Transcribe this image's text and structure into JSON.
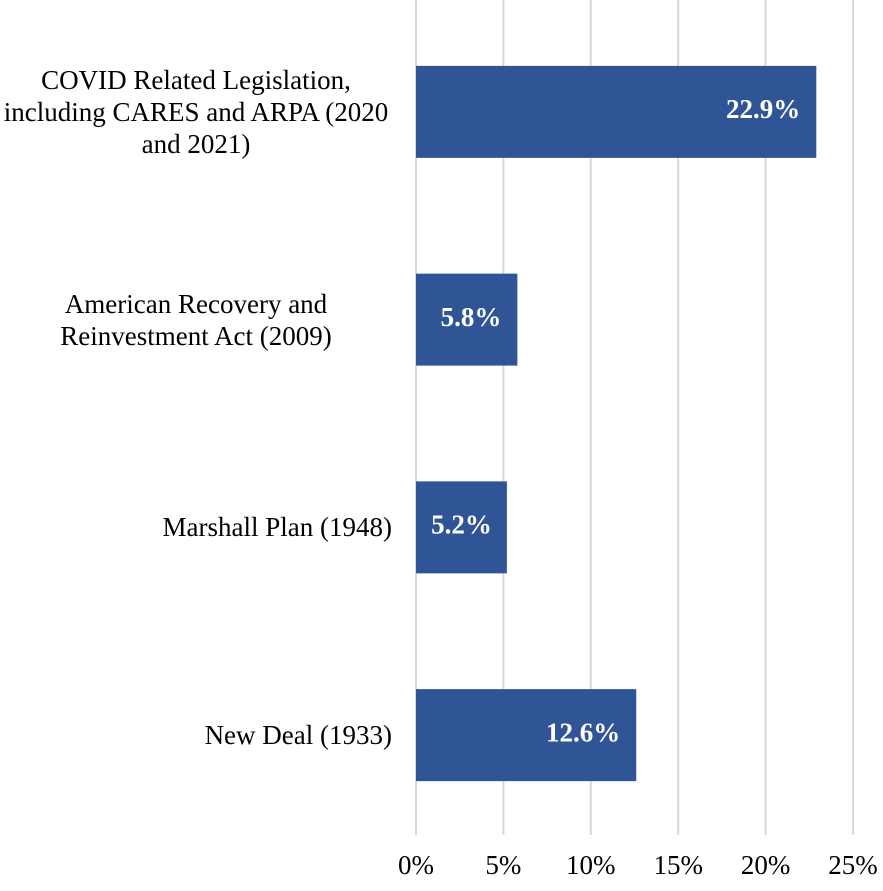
{
  "chart_data": {
    "type": "bar",
    "orientation": "horizontal",
    "categories": [
      "COVID Related Legislation, including CARES and ARPA (2020 and 2021)",
      "American Recovery and Reinvestment Act (2009)",
      "Marshall Plan (1948)",
      "New Deal (1933)"
    ],
    "values": [
      22.9,
      5.8,
      5.2,
      12.6
    ],
    "value_labels": [
      "22.9%",
      "5.8%",
      "5.2%",
      "12.6%"
    ],
    "color": "#2f5597",
    "xlim": [
      0,
      25
    ],
    "xticks": [
      {
        "value": 0,
        "label": "0%"
      },
      {
        "value": 5,
        "label": "5%"
      },
      {
        "value": 10,
        "label": "10%"
      },
      {
        "value": 15,
        "label": "15%"
      },
      {
        "value": 20,
        "label": "20%"
      },
      {
        "value": 25,
        "label": "25%"
      }
    ],
    "grid": true
  }
}
